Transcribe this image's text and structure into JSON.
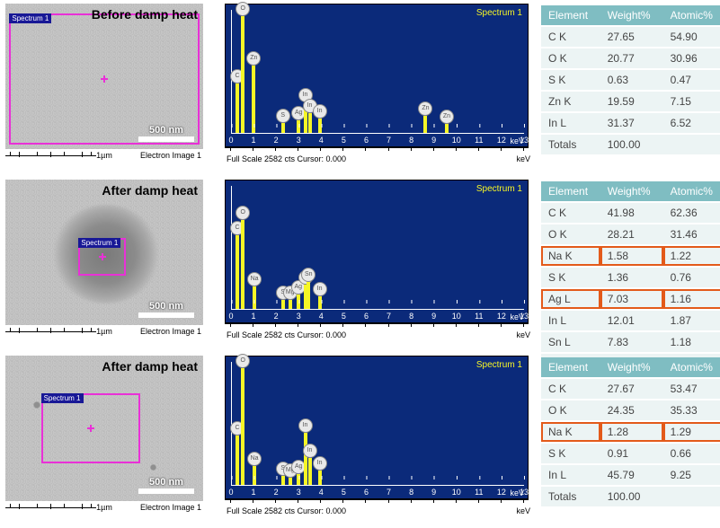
{
  "colors": {
    "spectrum_bg": "#0b2a7a",
    "spectrum_bar": "#f6f626",
    "spectrum_axis": "#ffffff",
    "sem_box": "#e930d7",
    "sem_tag_bg": "#181896",
    "table_header_bg": "#7fbdc2",
    "table_header_fg": "#ffffff",
    "table_cell_bg": "#ecf4f4",
    "table_cell_fg": "#444444",
    "highlight_border": "#e35a1a"
  },
  "sem_footer": {
    "scale_label": "1µm",
    "caption": "Electron Image 1"
  },
  "scalebar_label": "500 nm",
  "spectrum_boxlabel": "Spectrum 1",
  "spectrum_footer_left": "Full Scale 2582 cts Cursor: 0.000",
  "spectrum_footer_right": "keV",
  "x_max_kev": 13,
  "rows": [
    {
      "sem": {
        "title": "Before damp heat",
        "variant": "noisy",
        "has_blob": false,
        "box": {
          "left_pct": 2,
          "top_pct": 7,
          "width_pct": 96,
          "height_pct": 90
        }
      },
      "spectrum": {
        "peaks": [
          {
            "kev": 0.28,
            "h": 0.4,
            "label": "C"
          },
          {
            "kev": 0.53,
            "h": 0.95,
            "label": "O"
          },
          {
            "kev": 1.01,
            "h": 0.55,
            "label": "Zn"
          },
          {
            "kev": 2.3,
            "h": 0.08,
            "label": "S"
          },
          {
            "kev": 3.0,
            "h": 0.1,
            "label": "Ag"
          },
          {
            "kev": 3.29,
            "h": 0.25,
            "label": "In"
          },
          {
            "kev": 3.49,
            "h": 0.16,
            "label": "In"
          },
          {
            "kev": 3.93,
            "h": 0.12,
            "label": "In"
          },
          {
            "kev": 8.63,
            "h": 0.14,
            "label": "Zn"
          },
          {
            "kev": 9.57,
            "h": 0.07,
            "label": "Zn"
          }
        ]
      },
      "table": {
        "headers": [
          "Element",
          "Weight%",
          "Atomic%"
        ],
        "rows": [
          {
            "cells": [
              "C K",
              "27.65",
              "54.90"
            ],
            "hl": false
          },
          {
            "cells": [
              "O K",
              "20.77",
              "30.96"
            ],
            "hl": false
          },
          {
            "cells": [
              "S K",
              "0.63",
              "0.47"
            ],
            "hl": false
          },
          {
            "cells": [
              "Zn K",
              "19.59",
              "7.15"
            ],
            "hl": false
          },
          {
            "cells": [
              "In L",
              "31.37",
              "6.52"
            ],
            "hl": false
          },
          {
            "cells": [
              "Totals",
              "100.00",
              ""
            ],
            "hl": false
          }
        ]
      }
    },
    {
      "sem": {
        "title": "After damp heat",
        "variant": "noisy",
        "has_blob": true,
        "box": {
          "left_pct": 37,
          "top_pct": 40,
          "width_pct": 24,
          "height_pct": 26
        }
      },
      "spectrum": {
        "peaks": [
          {
            "kev": 0.28,
            "h": 0.6,
            "label": "C"
          },
          {
            "kev": 0.53,
            "h": 0.72,
            "label": "O"
          },
          {
            "kev": 1.04,
            "h": 0.18,
            "label": "Na"
          },
          {
            "kev": 2.3,
            "h": 0.07,
            "label": "S"
          },
          {
            "kev": 2.62,
            "h": 0.07,
            "label": "Mg"
          },
          {
            "kev": 2.98,
            "h": 0.12,
            "label": "Ag"
          },
          {
            "kev": 3.29,
            "h": 0.2,
            "label": "In"
          },
          {
            "kev": 3.44,
            "h": 0.22,
            "label": "Sn"
          },
          {
            "kev": 3.93,
            "h": 0.1,
            "label": "In"
          }
        ]
      },
      "table": {
        "headers": [
          "Element",
          "Weight%",
          "Atomic%"
        ],
        "rows": [
          {
            "cells": [
              "C K",
              "41.98",
              "62.36"
            ],
            "hl": false
          },
          {
            "cells": [
              "O K",
              "28.21",
              "31.46"
            ],
            "hl": false
          },
          {
            "cells": [
              "Na K",
              "1.58",
              "1.22"
            ],
            "hl": true
          },
          {
            "cells": [
              "S K",
              "1.36",
              "0.76"
            ],
            "hl": false
          },
          {
            "cells": [
              "Ag L",
              "7.03",
              "1.16"
            ],
            "hl": true
          },
          {
            "cells": [
              "In L",
              "12.01",
              "1.87"
            ],
            "hl": false
          },
          {
            "cells": [
              "Sn L",
              "7.83",
              "1.18"
            ],
            "hl": false
          },
          {
            "cells": [
              "Totals",
              "100.00",
              ""
            ],
            "hl": false
          }
        ]
      }
    },
    {
      "sem": {
        "title": "After damp heat",
        "variant": "noisy",
        "has_blob": false,
        "has_speckles": true,
        "box": {
          "left_pct": 18,
          "top_pct": 26,
          "width_pct": 50,
          "height_pct": 48
        }
      },
      "spectrum": {
        "peaks": [
          {
            "kev": 0.28,
            "h": 0.4,
            "label": "C"
          },
          {
            "kev": 0.53,
            "h": 0.95,
            "label": "O"
          },
          {
            "kev": 1.04,
            "h": 0.15,
            "label": "Na"
          },
          {
            "kev": 2.3,
            "h": 0.07,
            "label": "S"
          },
          {
            "kev": 2.62,
            "h": 0.06,
            "label": "Mg"
          },
          {
            "kev": 3.0,
            "h": 0.09,
            "label": "Ag"
          },
          {
            "kev": 3.29,
            "h": 0.42,
            "label": "In"
          },
          {
            "kev": 3.49,
            "h": 0.22,
            "label": "In"
          },
          {
            "kev": 3.93,
            "h": 0.12,
            "label": "In"
          }
        ]
      },
      "table": {
        "headers": [
          "Element",
          "Weight%",
          "Atomic%"
        ],
        "rows": [
          {
            "cells": [
              "C K",
              "27.67",
              "53.47"
            ],
            "hl": false
          },
          {
            "cells": [
              "O K",
              "24.35",
              "35.33"
            ],
            "hl": false
          },
          {
            "cells": [
              "Na K",
              "1.28",
              "1.29"
            ],
            "hl": true
          },
          {
            "cells": [
              "S K",
              "0.91",
              "0.66"
            ],
            "hl": false
          },
          {
            "cells": [
              "In L",
              "45.79",
              "9.25"
            ],
            "hl": false
          },
          {
            "cells": [
              "Totals",
              "100.00",
              ""
            ],
            "hl": false
          }
        ]
      }
    }
  ]
}
